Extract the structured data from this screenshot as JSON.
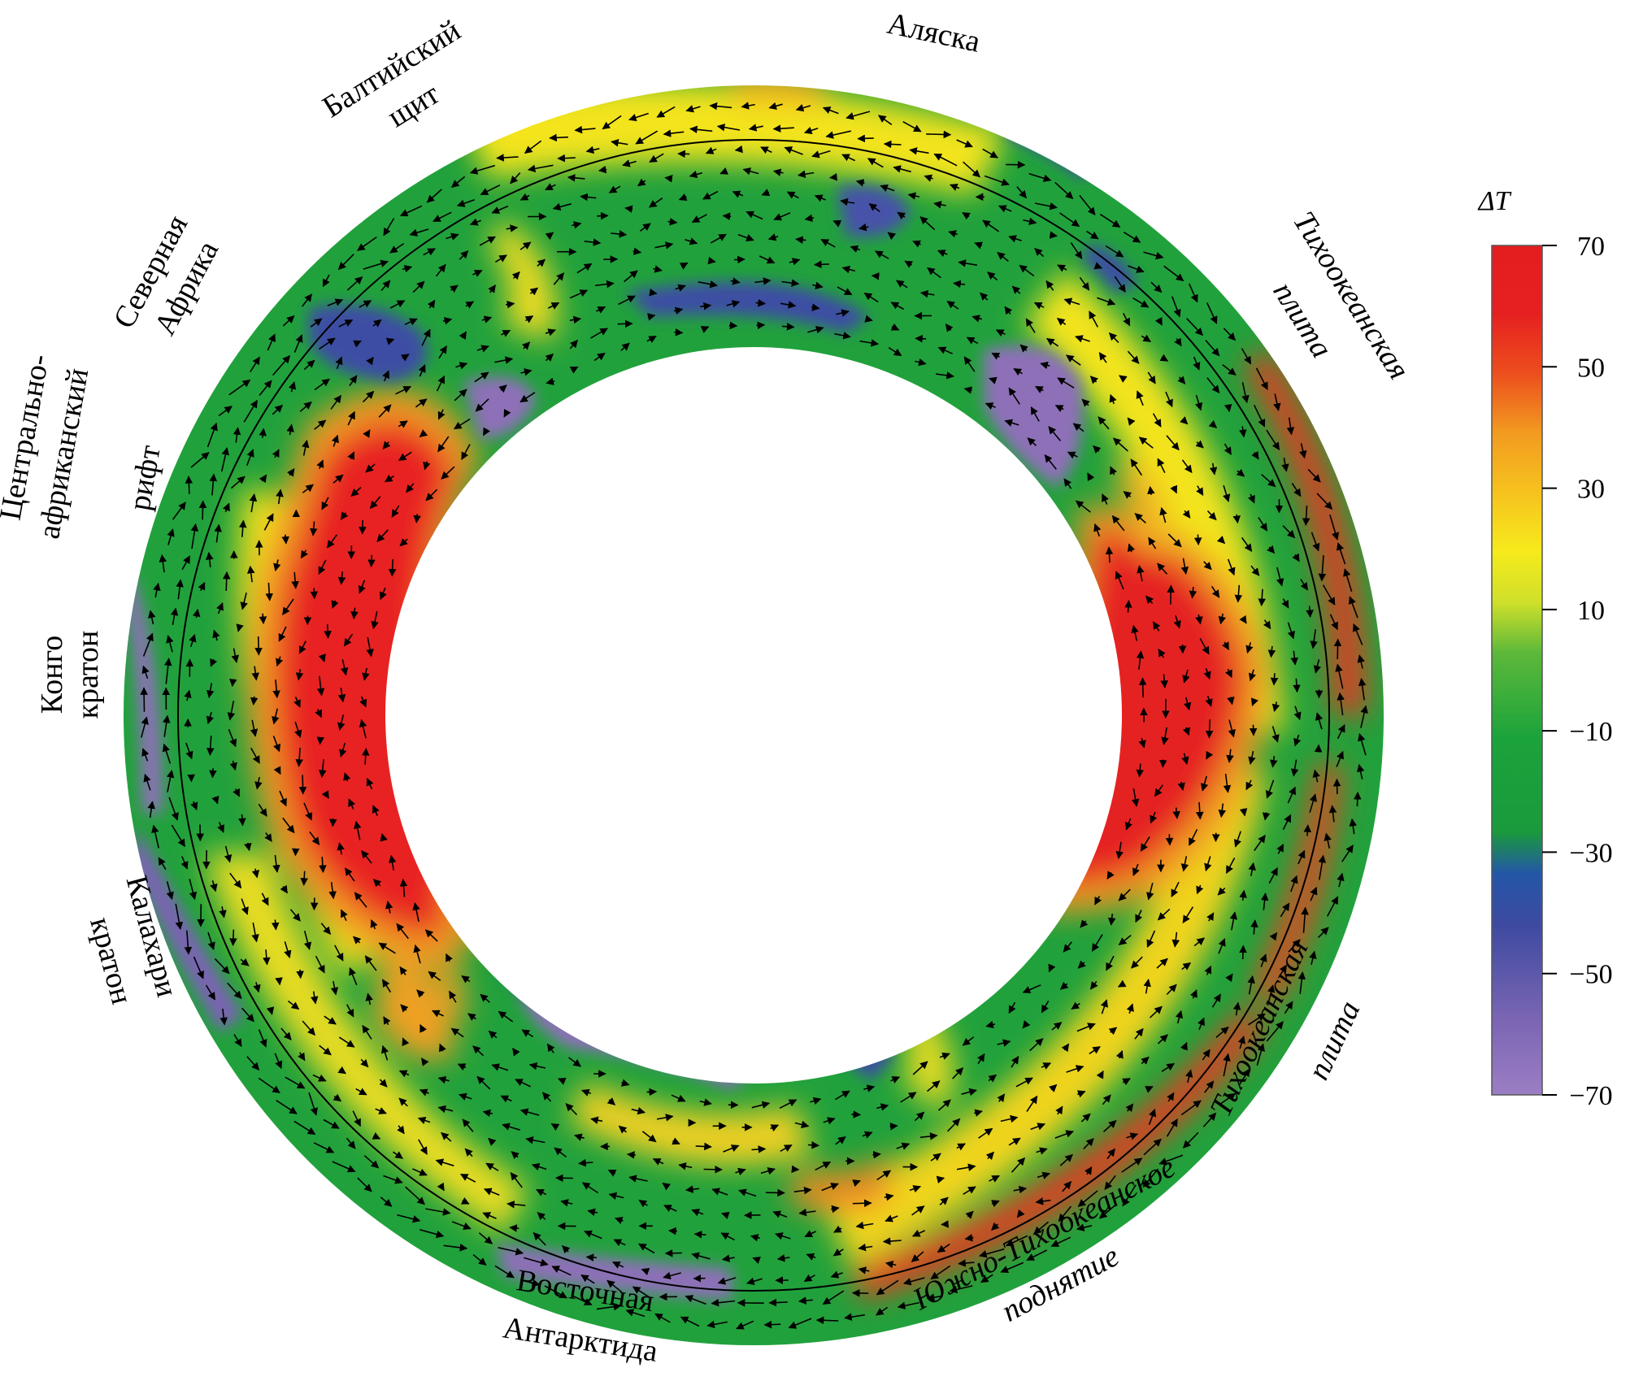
{
  "labels": {
    "baltic_1": "Балтийский",
    "baltic_2": "щит",
    "alaska": "Аляска",
    "n_africa_1": "Северная",
    "n_africa_2": "Африка",
    "c_africa_1": "Центрально-",
    "c_africa_2": "африканский",
    "c_africa_3": "рифт",
    "congo_1": "Конго",
    "congo_2": "кратон",
    "kalahari_1": "Калахари",
    "kalahari_2": "кратон",
    "e_antarctica_1": "Восточная",
    "e_antarctica_2": "Антарктида",
    "pacific_top_1": "Тихоокеанская",
    "pacific_top_2": "плита",
    "pacific_bot_1": "Тихоокеанская",
    "pacific_bot_2": "плита",
    "s_pacific_1": "Южно-Тихоокеанское",
    "s_pacific_2": "поднятие"
  },
  "colorbar": {
    "title": "ΔT",
    "ticks": [
      "70",
      "50",
      "30",
      "10",
      "−10",
      "−30",
      "−50",
      "−70"
    ],
    "min": -70,
    "max": 70,
    "colors": [
      "#8e6fb8",
      "#3a4ea3",
      "#1aa04a",
      "#22a33a",
      "#c8d82a",
      "#f2e61a",
      "#f0a020",
      "#e82020"
    ]
  }
}
